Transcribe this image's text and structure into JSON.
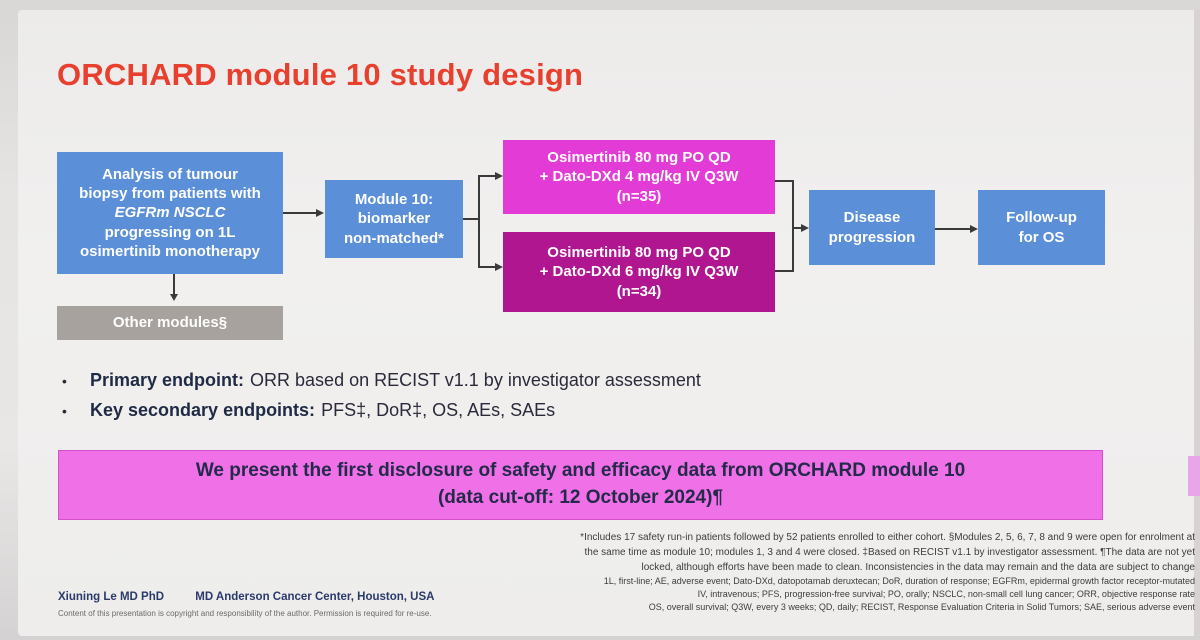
{
  "title": "ORCHARD module 10 study design",
  "flow": {
    "analysis_lines": [
      "Analysis of tumour",
      "biopsy from patients with",
      "EGFRm NSCLC",
      "progressing on 1L",
      "osimertinib monotherapy"
    ],
    "other_modules": "Other modules§",
    "module10_lines": [
      "Module 10:",
      "biomarker",
      "non-matched*"
    ],
    "arm1_lines": [
      "Osimertinib 80 mg PO QD",
      "+ Dato-DXd 4 mg/kg IV Q3W",
      "(n=35)"
    ],
    "arm2_lines": [
      "Osimertinib 80 mg PO QD",
      "+ Dato-DXd 6 mg/kg IV Q3W",
      "(n=34)"
    ],
    "progression_lines": [
      "Disease",
      "progression"
    ],
    "followup_lines": [
      "Follow-up",
      "for OS"
    ]
  },
  "endpoints": {
    "primary_label": "Primary endpoint:",
    "primary_text": "ORR based on RECIST v1.1 by investigator assessment",
    "secondary_label": "Key secondary endpoints:",
    "secondary_text": "PFS‡, DoR‡, OS, AEs, SAEs"
  },
  "banner": {
    "line1": "We present the first disclosure of safety and efficacy data from ORCHARD module 10",
    "line2": "(data cut-off: 12 October 2024)¶"
  },
  "footnotes": {
    "line1": "*Includes 17 safety run-in patients followed by 52 patients enrolled to either cohort. §Modules 2, 5, 6, 7, 8 and 9 were open for enrolment at",
    "line2": "the same time as module 10; modules 1, 3 and 4 were closed. ‡Based on RECIST v1.1 by investigator assessment. ¶The data are not yet",
    "line3": "locked, although efforts have been made to clean. Inconsistencies in the data may remain and the data are subject to change",
    "abbr1": "1L, first-line; AE, adverse event; Dato-DXd, datopotamab deruxtecan; DoR, duration of response; EGFRm, epidermal growth factor receptor-mutated",
    "abbr2": "IV, intravenous; PFS, progression-free survival; PO, orally; NSCLC, non-small cell lung cancer; ORR, objective response rate",
    "abbr3": "OS, overall survival; Q3W, every 3 weeks; QD, daily; RECIST, Response Evaluation Criteria in Solid Tumors; SAE, serious adverse event"
  },
  "author": {
    "name": "Xiuning Le MD PhD",
    "affiliation": "MD Anderson Cancer Center, Houston, USA",
    "copyright": "Content of this presentation is copyright and responsibility of the author. Permission is required for re-use."
  },
  "colors": {
    "title": "#e8402e",
    "blue_box": "#5b8fd7",
    "arm1": "#e33bd6",
    "arm2": "#b0168f",
    "banner": "#f070e8",
    "gray_box": "#a7a29e"
  }
}
